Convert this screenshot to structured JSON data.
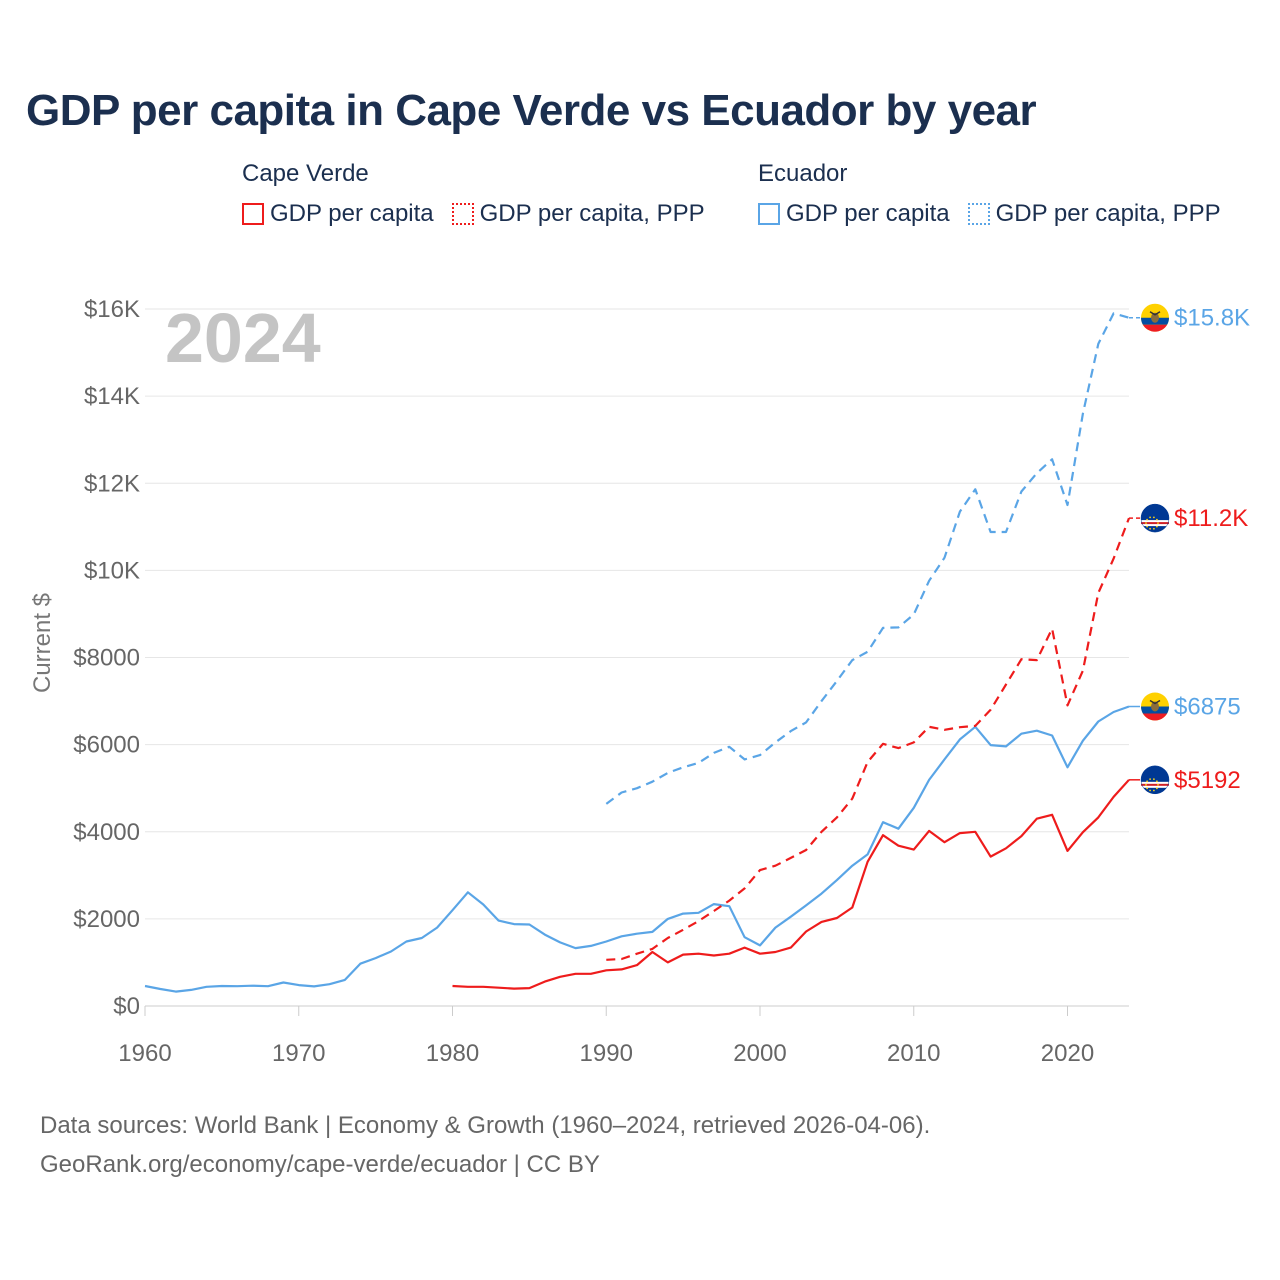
{
  "title": "GDP per capita in Cape Verde vs Ecuador by year",
  "legend": {
    "cape_verde": {
      "name": "Cape Verde",
      "gdp": "GDP per capita",
      "ppp": "GDP per capita, PPP",
      "color": "#ee1c1c"
    },
    "ecuador": {
      "name": "Ecuador",
      "gdp": "GDP per capita",
      "ppp": "GDP per capita, PPP",
      "color": "#5aa5e6"
    }
  },
  "year_watermark": "2024",
  "footer": {
    "line1": "Data sources: World Bank | Economy & Growth (1960–2024, retrieved 2026-04-06).",
    "line2": "GeoRank.org/economy/cape-verde/ecuador | CC BY"
  },
  "chart_data": {
    "type": "line",
    "ylabel": "Current $",
    "xlim": [
      1960,
      2024
    ],
    "ylim": [
      0,
      16000
    ],
    "x_ticks": [
      1960,
      1970,
      1980,
      1990,
      2000,
      2010,
      2020
    ],
    "x_tick_labels": [
      "1960",
      "1970",
      "1980",
      "1990",
      "2000",
      "2010",
      "2020"
    ],
    "y_ticks": [
      0,
      2000,
      4000,
      6000,
      8000,
      10000,
      12000,
      14000,
      16000
    ],
    "y_tick_labels": [
      "$0",
      "$2000",
      "$4000",
      "$6000",
      "$8000",
      "$10K",
      "$12K",
      "$14K",
      "$16K"
    ],
    "series": [
      {
        "name": "Ecuador GDP per capita",
        "country": "Ecuador",
        "color": "#5aa5e6",
        "dash": false,
        "end_label": "$6875",
        "start_year": 1960,
        "values": [
          460,
          390,
          330,
          370,
          440,
          460,
          455,
          465,
          455,
          540,
          480,
          450,
          500,
          600,
          970,
          1100,
          1250,
          1480,
          1560,
          1800,
          2200,
          2610,
          2330,
          1960,
          1880,
          1870,
          1640,
          1460,
          1330,
          1380,
          1480,
          1600,
          1660,
          1700,
          2000,
          2120,
          2140,
          2340,
          2290,
          1580,
          1390,
          1800,
          2050,
          2310,
          2580,
          2890,
          3220,
          3480,
          4220,
          4070,
          4550,
          5190,
          5660,
          6120,
          6410,
          5990,
          5960,
          6250,
          6320,
          6210,
          5480,
          6090,
          6530,
          6750,
          6875
        ]
      },
      {
        "name": "Ecuador GDP per capita, PPP",
        "country": "Ecuador",
        "color": "#5aa5e6",
        "dash": true,
        "end_label": "$15.8K",
        "start_year": 1990,
        "values": [
          4640,
          4900,
          5000,
          5150,
          5350,
          5480,
          5580,
          5810,
          5950,
          5660,
          5760,
          6050,
          6310,
          6510,
          7000,
          7460,
          7940,
          8130,
          8680,
          8690,
          8990,
          9760,
          10290,
          11350,
          11860,
          10880,
          10880,
          11810,
          12230,
          12550,
          11500,
          13600,
          15200,
          15900,
          15800
        ]
      },
      {
        "name": "Cape Verde GDP per capita",
        "country": "Cape Verde",
        "color": "#ee1c1c",
        "dash": false,
        "end_label": "$5192",
        "start_year": 1980,
        "values": [
          460,
          440,
          440,
          420,
          400,
          410,
          560,
          670,
          740,
          740,
          820,
          840,
          940,
          1240,
          1000,
          1180,
          1200,
          1160,
          1200,
          1340,
          1200,
          1240,
          1340,
          1710,
          1930,
          2020,
          2260,
          3310,
          3920,
          3680,
          3590,
          4020,
          3760,
          3970,
          4000,
          3430,
          3620,
          3900,
          4300,
          4390,
          3560,
          3990,
          4330,
          4800,
          5192
        ]
      },
      {
        "name": "Cape Verde GDP per capita, PPP",
        "country": "Cape Verde",
        "color": "#ee1c1c",
        "dash": true,
        "end_label": "$11.2K",
        "start_year": 1990,
        "values": [
          1060,
          1080,
          1200,
          1310,
          1560,
          1750,
          1950,
          2180,
          2420,
          2700,
          3120,
          3220,
          3400,
          3580,
          4000,
          4330,
          4760,
          5600,
          6020,
          5920,
          6050,
          6410,
          6340,
          6400,
          6430,
          6800,
          7380,
          7960,
          7940,
          8660,
          6900,
          7700,
          9480,
          10270,
          11200
        ]
      }
    ]
  }
}
